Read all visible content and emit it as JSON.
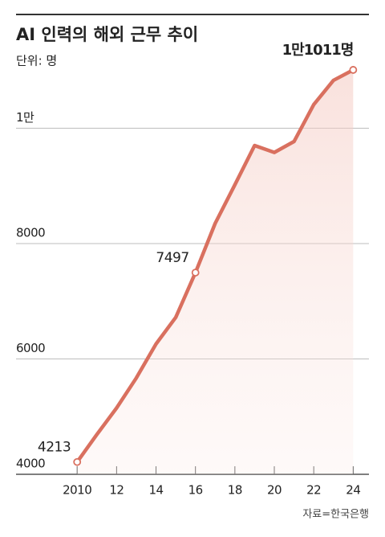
{
  "chart_data": {
    "type": "line",
    "title": "AI 인력의 해외 근무 추이",
    "subtitle": "단위: 명",
    "source": "자료=한국은행",
    "x": [
      2010,
      2011,
      2012,
      2013,
      2014,
      2015,
      2016,
      2017,
      2018,
      2019,
      2020,
      2021,
      2022,
      2023,
      2024
    ],
    "series": [
      {
        "color": "#d9705f",
        "values": [
          4213,
          4690,
          5150,
          5670,
          6260,
          6720,
          7497,
          8350,
          9020,
          9700,
          9580,
          9770,
          10410,
          10830,
          11011
        ],
        "value_labels": [
          "4213",
          null,
          null,
          null,
          null,
          null,
          "7497",
          null,
          null,
          null,
          null,
          null,
          null,
          null,
          "1만1011명"
        ]
      }
    ],
    "xlim": [
      2006.9,
      2024.8
    ],
    "xticks": [
      2010,
      {
        "value": 2012,
        "label": "12"
      },
      {
        "value": 2014,
        "label": "14"
      },
      {
        "value": 2016,
        "label": "16"
      },
      {
        "value": 2018,
        "label": "18"
      },
      {
        "value": 2020,
        "label": "20"
      },
      {
        "value": 2022,
        "label": "22"
      },
      {
        "value": 2024,
        "label": "24"
      }
    ],
    "ylim": [
      4000,
      12000
    ],
    "yticks": [
      4000,
      6000,
      8000,
      {
        "value": 10000,
        "label": "1만"
      }
    ],
    "grid": true
  }
}
